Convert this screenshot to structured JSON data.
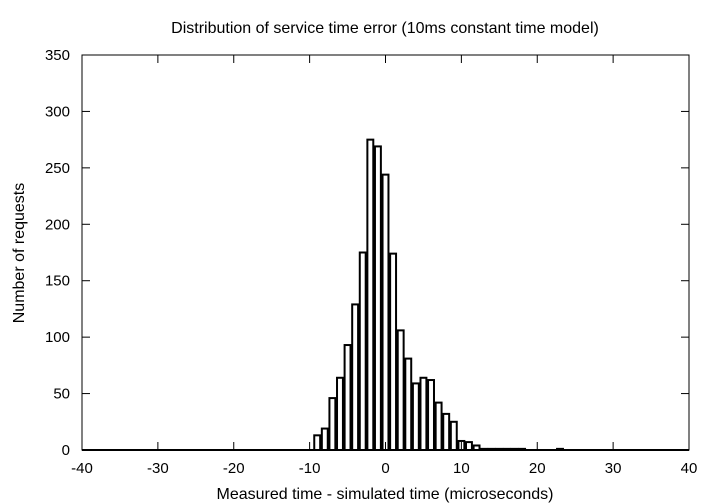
{
  "chart_data": {
    "type": "bar",
    "title": "Distribution of service time error (10ms constant time model)",
    "xlabel": "Measured time - simulated time (microseconds)",
    "ylabel": "Number of requests",
    "xlim": [
      -40,
      40
    ],
    "ylim": [
      0,
      350
    ],
    "x_ticks": [
      "-40",
      "-30",
      "-20",
      "-10",
      "0",
      "10",
      "20",
      "30",
      "40"
    ],
    "y_ticks": [
      "0",
      "50",
      "100",
      "150",
      "200",
      "250",
      "300",
      "350"
    ],
    "grid": false,
    "legend": "none",
    "bin_width": 1,
    "x": [
      -9,
      -8,
      -7,
      -6,
      -5,
      -4,
      -3,
      -2,
      -1,
      0,
      1,
      2,
      3,
      4,
      5,
      6,
      7,
      8,
      9,
      10,
      11,
      12,
      13,
      14,
      15,
      16,
      17,
      18,
      23
    ],
    "values": [
      13,
      19,
      46,
      64,
      93,
      129,
      175,
      275,
      269,
      244,
      174,
      106,
      81,
      59,
      64,
      62,
      42,
      32,
      25,
      8,
      7,
      4,
      1,
      1,
      1,
      1,
      1,
      1,
      1
    ],
    "bar_color": "#ffffff",
    "line_color": "#000000"
  }
}
